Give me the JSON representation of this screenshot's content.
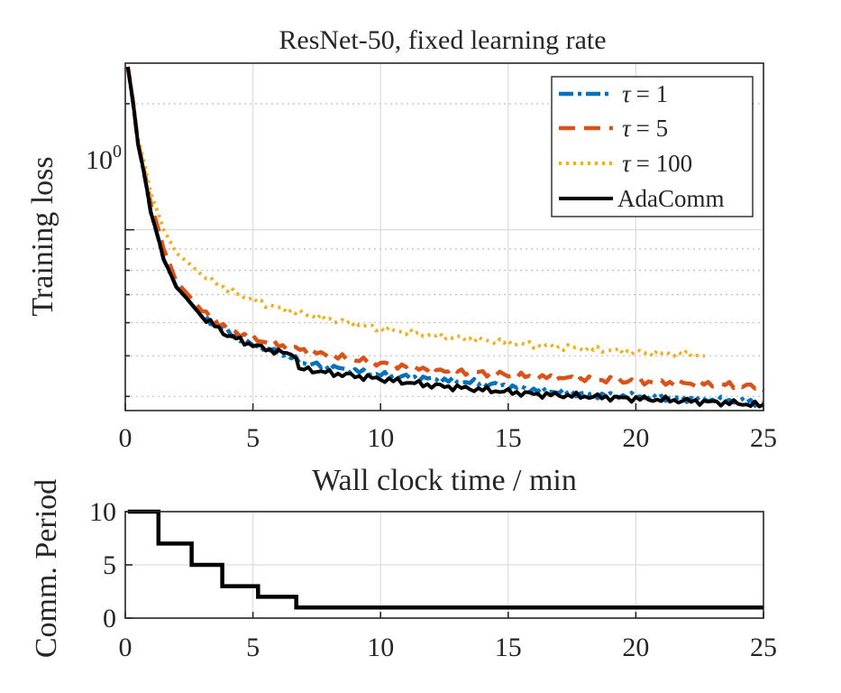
{
  "colors": {
    "tau1": "#0072BD",
    "tau5": "#D95319",
    "tau100": "#EDB120",
    "adacomm": "#000000"
  },
  "chart_data": [
    {
      "type": "line",
      "title": "ResNet-50, fixed learning rate",
      "xlabel": "Wall clock time / min",
      "ylabel": "Training loss",
      "yscale": "log",
      "xlim": [
        0,
        25
      ],
      "ylim": [
        0.37,
        2.5
      ],
      "xticks": [
        "0",
        "5",
        "10",
        "15",
        "20",
        "25"
      ],
      "ytick_label": "10",
      "ytick_exp": "0",
      "legend_position": "top-right",
      "series": [
        {
          "name": "τ = 1",
          "legend_sym": "τ",
          "legend_val": "= 1",
          "style": "dash-dot",
          "x": [
            0.1,
            0.5,
            1.0,
            1.5,
            2.0,
            3.0,
            4.0,
            5.0,
            6.0,
            7.0,
            8.0,
            10.0,
            12.0,
            14.0,
            16.0,
            18.0,
            20.0,
            22.0,
            24.0,
            25.0
          ],
          "y": [
            2.45,
            1.6,
            1.1,
            0.85,
            0.73,
            0.62,
            0.57,
            0.53,
            0.51,
            0.48,
            0.47,
            0.45,
            0.44,
            0.43,
            0.415,
            0.405,
            0.4,
            0.395,
            0.39,
            0.385
          ]
        },
        {
          "name": "τ = 5",
          "legend_sym": "τ",
          "legend_val": "= 5",
          "style": "dashed",
          "x": [
            0.1,
            0.5,
            1.0,
            1.5,
            2.0,
            3.0,
            4.0,
            5.0,
            6.0,
            7.0,
            8.0,
            10.0,
            12.0,
            14.0,
            16.0,
            18.0,
            20.0,
            22.0,
            24.0,
            25.0
          ],
          "y": [
            2.45,
            1.6,
            1.15,
            0.9,
            0.75,
            0.64,
            0.58,
            0.55,
            0.53,
            0.515,
            0.5,
            0.48,
            0.465,
            0.455,
            0.445,
            0.44,
            0.435,
            0.43,
            0.425,
            0.42
          ]
        },
        {
          "name": "τ = 100",
          "legend_sym": "τ",
          "legend_val": "= 100",
          "style": "dotted",
          "x": [
            0.1,
            0.5,
            1.0,
            1.5,
            2.0,
            3.0,
            4.0,
            5.0,
            6.0,
            8.0,
            10.0,
            12.0,
            14.0,
            16.0,
            18.0,
            20.0,
            22.0,
            22.7
          ],
          "y": [
            2.45,
            1.65,
            1.22,
            1.0,
            0.88,
            0.78,
            0.72,
            0.68,
            0.65,
            0.61,
            0.58,
            0.56,
            0.545,
            0.53,
            0.52,
            0.51,
            0.505,
            0.5
          ]
        },
        {
          "name": "AdaComm",
          "legend_sym": "",
          "legend_val": "AdaComm",
          "style": "solid",
          "x": [
            0.1,
            0.5,
            1.0,
            1.5,
            2.0,
            3.0,
            4.0,
            5.0,
            5.5,
            6.0,
            6.5,
            6.7,
            6.8,
            7.0,
            8.0,
            10.0,
            12.0,
            14.0,
            16.0,
            18.0,
            20.0,
            22.0,
            24.0,
            25.0
          ],
          "y": [
            2.45,
            1.6,
            1.1,
            0.85,
            0.73,
            0.62,
            0.56,
            0.53,
            0.52,
            0.51,
            0.505,
            0.5,
            0.46,
            0.465,
            0.455,
            0.44,
            0.425,
            0.415,
            0.405,
            0.4,
            0.395,
            0.39,
            0.385,
            0.38
          ]
        }
      ]
    },
    {
      "type": "line",
      "xlabel": "",
      "ylabel": "Comm. Period",
      "xlim": [
        0,
        25
      ],
      "ylim": [
        0,
        10
      ],
      "xticks": [
        "0",
        "5",
        "10",
        "15",
        "20",
        "25"
      ],
      "yticks": [
        "0",
        "5",
        "10"
      ],
      "series": [
        {
          "name": "AdaComm",
          "style": "step",
          "x": [
            0.1,
            1.3,
            1.3,
            2.6,
            2.6,
            3.8,
            3.8,
            5.2,
            5.2,
            6.7,
            6.7,
            25.0
          ],
          "y": [
            10,
            10,
            7,
            7,
            5,
            5,
            3,
            3,
            2,
            2,
            1,
            1
          ]
        }
      ]
    }
  ]
}
